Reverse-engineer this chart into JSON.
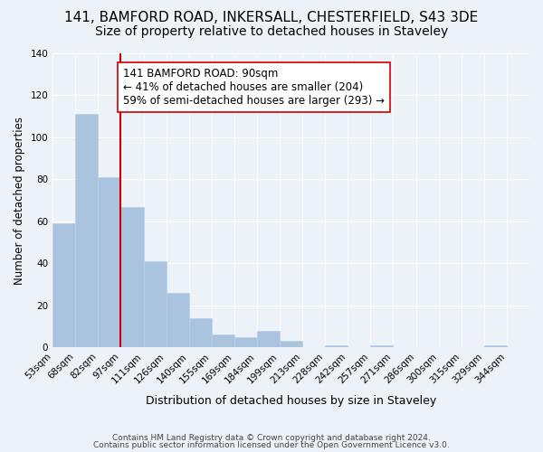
{
  "title": "141, BAMFORD ROAD, INKERSALL, CHESTERFIELD, S43 3DE",
  "subtitle": "Size of property relative to detached houses in Staveley",
  "xlabel": "Distribution of detached houses by size in Staveley",
  "ylabel": "Number of detached properties",
  "footer_line1": "Contains HM Land Registry data © Crown copyright and database right 2024.",
  "footer_line2": "Contains public sector information licensed under the Open Government Licence v3.0.",
  "bin_labels": [
    "53sqm",
    "68sqm",
    "82sqm",
    "97sqm",
    "111sqm",
    "126sqm",
    "140sqm",
    "155sqm",
    "169sqm",
    "184sqm",
    "199sqm",
    "213sqm",
    "228sqm",
    "242sqm",
    "257sqm",
    "271sqm",
    "286sqm",
    "300sqm",
    "315sqm",
    "329sqm",
    "344sqm"
  ],
  "bar_heights": [
    59,
    111,
    81,
    67,
    41,
    26,
    14,
    6,
    5,
    8,
    3,
    0,
    1,
    0,
    1,
    0,
    0,
    0,
    0,
    1
  ],
  "bar_color": "#aac4e0",
  "bar_edge_color": "#b8cfe8",
  "property_line_x": 2,
  "property_line_color": "#cc0000",
  "annotation_text": "141 BAMFORD ROAD: 90sqm\n← 41% of detached houses are smaller (204)\n59% of semi-detached houses are larger (293) →",
  "annotation_box_color": "#ffffff",
  "annotation_box_edge_color": "#cc0000",
  "ylim": [
    0,
    140
  ],
  "yticks": [
    0,
    20,
    40,
    60,
    80,
    100,
    120,
    140
  ],
  "bg_color": "#edf2f9",
  "title_fontsize": 11,
  "subtitle_fontsize": 10,
  "annotation_fontsize": 8.5
}
